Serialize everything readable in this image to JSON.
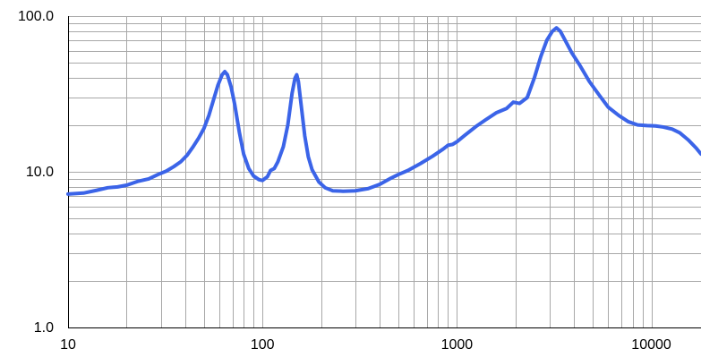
{
  "chart_data": {
    "type": "line",
    "title": "",
    "xlabel": "",
    "ylabel": "",
    "x_scale": "log",
    "y_scale": "log",
    "xlim": [
      10,
      18000
    ],
    "ylim": [
      1,
      100
    ],
    "grid": true,
    "legend": "none",
    "colors": {
      "line": "#3b64e8",
      "grid": "#a8a8a8",
      "axis": "#000000",
      "background": "#ffffff"
    },
    "x_ticks": [
      {
        "value": 10,
        "label": "10"
      },
      {
        "value": 100,
        "label": "100"
      },
      {
        "value": 1000,
        "label": "1000"
      },
      {
        "value": 10000,
        "label": "10000"
      }
    ],
    "y_ticks": [
      {
        "value": 1,
        "label": "1.0"
      },
      {
        "value": 10,
        "label": "10.0"
      },
      {
        "value": 100,
        "label": "100.0"
      }
    ],
    "series": [
      {
        "points": [
          [
            10,
            7.2
          ],
          [
            12,
            7.3
          ],
          [
            14,
            7.6
          ],
          [
            16,
            7.9
          ],
          [
            18,
            8.0
          ],
          [
            20,
            8.2
          ],
          [
            23,
            8.7
          ],
          [
            26,
            9.0
          ],
          [
            29,
            9.6
          ],
          [
            32,
            10.1
          ],
          [
            35,
            10.8
          ],
          [
            38,
            11.6
          ],
          [
            41,
            12.8
          ],
          [
            44,
            14.5
          ],
          [
            47,
            16.5
          ],
          [
            50,
            19.0
          ],
          [
            53,
            23.0
          ],
          [
            56,
            29.0
          ],
          [
            59,
            36.0
          ],
          [
            62,
            42.0
          ],
          [
            64,
            44.0
          ],
          [
            66,
            42.0
          ],
          [
            69,
            35.0
          ],
          [
            72,
            27.0
          ],
          [
            76,
            18.0
          ],
          [
            80,
            13.0
          ],
          [
            85,
            10.5
          ],
          [
            90,
            9.4
          ],
          [
            96,
            8.9
          ],
          [
            100,
            8.8
          ],
          [
            106,
            9.3
          ],
          [
            110,
            10.2
          ],
          [
            115,
            10.5
          ],
          [
            120,
            11.6
          ],
          [
            128,
            14.5
          ],
          [
            135,
            20.0
          ],
          [
            142,
            32.0
          ],
          [
            147,
            40.0
          ],
          [
            150,
            42.0
          ],
          [
            153,
            38.0
          ],
          [
            158,
            27.0
          ],
          [
            165,
            17.0
          ],
          [
            172,
            12.5
          ],
          [
            180,
            10.3
          ],
          [
            195,
            8.6
          ],
          [
            210,
            7.9
          ],
          [
            230,
            7.55
          ],
          [
            260,
            7.5
          ],
          [
            300,
            7.55
          ],
          [
            350,
            7.8
          ],
          [
            400,
            8.3
          ],
          [
            450,
            9.0
          ],
          [
            500,
            9.6
          ],
          [
            560,
            10.2
          ],
          [
            650,
            11.3
          ],
          [
            750,
            12.6
          ],
          [
            850,
            14.0
          ],
          [
            900,
            14.8
          ],
          [
            950,
            15.0
          ],
          [
            1000,
            15.6
          ],
          [
            1100,
            17.2
          ],
          [
            1250,
            19.5
          ],
          [
            1400,
            21.5
          ],
          [
            1600,
            24.0
          ],
          [
            1800,
            25.5
          ],
          [
            1950,
            28.0
          ],
          [
            2100,
            27.5
          ],
          [
            2300,
            30.0
          ],
          [
            2500,
            40.0
          ],
          [
            2700,
            55.0
          ],
          [
            2900,
            70.0
          ],
          [
            3100,
            80.0
          ],
          [
            3250,
            84.0
          ],
          [
            3400,
            80.0
          ],
          [
            3600,
            70.0
          ],
          [
            3900,
            58.0
          ],
          [
            4300,
            48.0
          ],
          [
            4800,
            38.0
          ],
          [
            5400,
            31.0
          ],
          [
            6000,
            26.0
          ],
          [
            6800,
            23.0
          ],
          [
            7600,
            21.0
          ],
          [
            8500,
            20.0
          ],
          [
            9500,
            19.8
          ],
          [
            10500,
            19.7
          ],
          [
            11500,
            19.4
          ],
          [
            12800,
            18.8
          ],
          [
            14000,
            17.8
          ],
          [
            15500,
            16.0
          ],
          [
            17000,
            14.2
          ],
          [
            18000,
            13.0
          ]
        ]
      }
    ]
  }
}
